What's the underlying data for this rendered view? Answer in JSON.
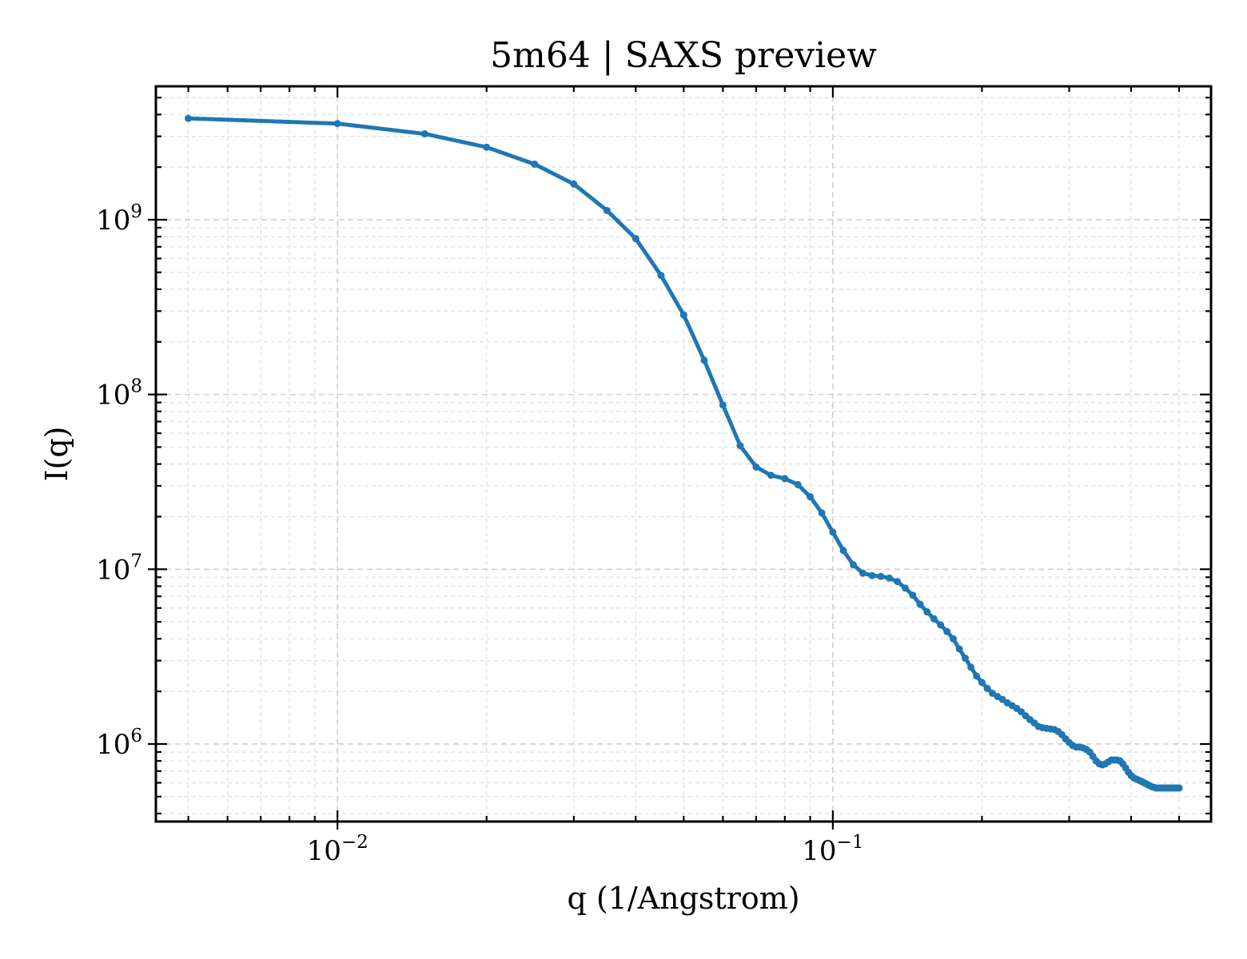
{
  "chart_data": {
    "type": "line",
    "title": "5m64 | SAXS preview",
    "xlabel": "q (1/Angstrom)",
    "ylabel": "I(q)",
    "xscale": "log",
    "yscale": "log",
    "xlim": [
      0.0043,
      0.58
    ],
    "ylim": [
      360000,
      5800000000
    ],
    "grid": true,
    "legend": "none",
    "x_ticks": [
      {
        "value": 0.01,
        "base": "10",
        "exp": "−2"
      },
      {
        "value": 0.1,
        "base": "10",
        "exp": "−1"
      }
    ],
    "y_ticks": [
      {
        "value": 1000000,
        "base": "10",
        "exp": "6"
      },
      {
        "value": 10000000,
        "base": "10",
        "exp": "7"
      },
      {
        "value": 100000000,
        "base": "10",
        "exp": "8"
      },
      {
        "value": 1000000000,
        "base": "10",
        "exp": "9"
      }
    ],
    "series": [
      {
        "color": "#1f77b4",
        "x": [
          0.005,
          0.01,
          0.015,
          0.02,
          0.025,
          0.03,
          0.035,
          0.04,
          0.045,
          0.05,
          0.055,
          0.06,
          0.065,
          0.07,
          0.075,
          0.08,
          0.085,
          0.09,
          0.095,
          0.1,
          0.105,
          0.11,
          0.115,
          0.12,
          0.125,
          0.13,
          0.135,
          0.14,
          0.145,
          0.15,
          0.155,
          0.16,
          0.165,
          0.17,
          0.175,
          0.18,
          0.185,
          0.19,
          0.195,
          0.2,
          0.205,
          0.21,
          0.215,
          0.22,
          0.225,
          0.23,
          0.235,
          0.24,
          0.245,
          0.25,
          0.255,
          0.26,
          0.265,
          0.27,
          0.275,
          0.28,
          0.285,
          0.29,
          0.295,
          0.3,
          0.305,
          0.31,
          0.315,
          0.32,
          0.325,
          0.33,
          0.335,
          0.34,
          0.345,
          0.35,
          0.355,
          0.36,
          0.365,
          0.37,
          0.375,
          0.38,
          0.385,
          0.39,
          0.395,
          0.4,
          0.405,
          0.41,
          0.415,
          0.42,
          0.425,
          0.43,
          0.435,
          0.44,
          0.445,
          0.45,
          0.455,
          0.46,
          0.465,
          0.47,
          0.475,
          0.48,
          0.485,
          0.49,
          0.495,
          0.5
        ],
        "y": [
          3800000000,
          3550000000,
          3100000000,
          2600000000,
          2080000000,
          1600000000,
          1130000000,
          780000000,
          480000000,
          285000000,
          157000000,
          87000000,
          51000000,
          38500000,
          34500000,
          33000000,
          30500000,
          26000000,
          21000000,
          16300000,
          12800000,
          10600000,
          9500000,
          9200000,
          9100000,
          8900000,
          8500000,
          7800000,
          7100000,
          6300000,
          5700000,
          5200000,
          4800000,
          4400000,
          4000000,
          3500000,
          3100000,
          2750000,
          2450000,
          2250000,
          2080000,
          1950000,
          1870000,
          1800000,
          1720000,
          1660000,
          1600000,
          1530000,
          1450000,
          1380000,
          1320000,
          1260000,
          1240000,
          1230000,
          1220000,
          1210000,
          1180000,
          1130000,
          1070000,
          1020000,
          980000,
          960000,
          960000,
          950000,
          930000,
          900000,
          850000,
          800000,
          770000,
          760000,
          770000,
          790000,
          810000,
          810000,
          810000,
          800000,
          770000,
          730000,
          690000,
          660000,
          640000,
          630000,
          620000,
          610000,
          600000,
          590000,
          580000,
          570000,
          565000,
          560000,
          560000,
          560000,
          560000,
          560000,
          560000,
          560000,
          560000,
          560000,
          560000,
          560000
        ]
      }
    ]
  }
}
